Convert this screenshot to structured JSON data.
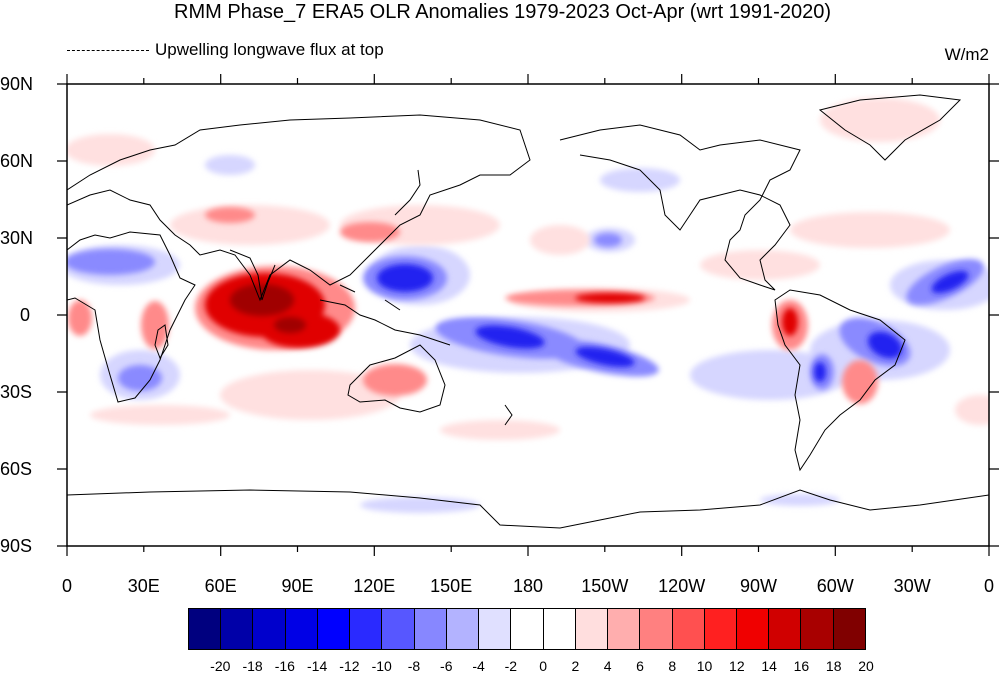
{
  "title": "RMM Phase_7 ERA5 OLR Anomalies 1979-2023 Oct-Apr (wrt 1991-2020)",
  "subtitle": "Upwelling longwave flux at top",
  "units": "W/m2",
  "axes": {
    "lat_labels": [
      "90N",
      "60N",
      "30N",
      "0",
      "30S",
      "60S",
      "90S"
    ],
    "lon_labels": [
      "0",
      "30E",
      "60E",
      "90E",
      "120E",
      "150E",
      "180",
      "150W",
      "120W",
      "90W",
      "60W",
      "30W",
      "0"
    ]
  },
  "colorbar": {
    "labels": [
      "-20",
      "-18",
      "-16",
      "-14",
      "-12",
      "-10",
      "-8",
      "-6",
      "-4",
      "-2",
      "0",
      "2",
      "4",
      "6",
      "8",
      "10",
      "12",
      "14",
      "16",
      "18",
      "20"
    ],
    "colors": [
      "#00007f",
      "#0000a8",
      "#0000cc",
      "#0000e6",
      "#0000ff",
      "#2a2aff",
      "#5757ff",
      "#8787ff",
      "#b3b3ff",
      "#e0e0ff",
      "#ffffff",
      "#ffffff",
      "#ffdede",
      "#ffaeae",
      "#ff8080",
      "#ff5050",
      "#ff2020",
      "#f00000",
      "#d00000",
      "#a80000",
      "#800000"
    ]
  },
  "colors": {
    "negative_strong": "#0000cc",
    "negative_mid": "#5757ff",
    "negative_weak": "#c8c8ff",
    "positive_strong": "#d00000",
    "positive_mid": "#ff5050",
    "positive_weak": "#ffc8c8"
  }
}
